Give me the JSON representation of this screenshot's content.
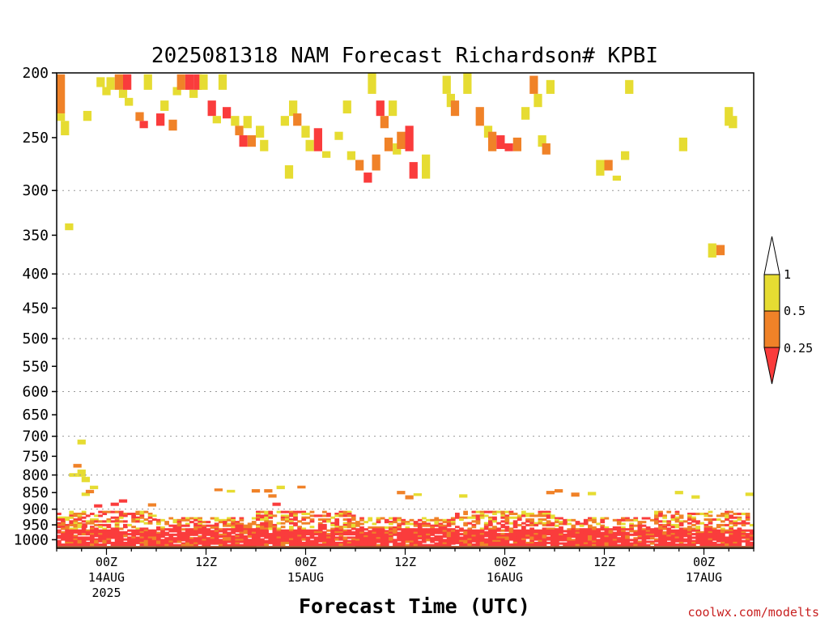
{
  "chart_data": {
    "type": "heatmap",
    "title": "2025081318 NAM Forecast Richardson# KPBI",
    "xlabel": "Forecast Time (UTC)",
    "ylabel": "",
    "credit": "coolwx.com/modelts",
    "x_unit": "hours from 2025-08-13 18Z",
    "xlim": [
      0,
      84
    ],
    "y_scale": "log",
    "ylim": [
      1030,
      200
    ],
    "y_ticks": [
      "200",
      "250",
      "300",
      "350",
      "400",
      "450",
      "500",
      "550",
      "600",
      "650",
      "700",
      "750",
      "800",
      "850",
      "900",
      "950",
      "1000"
    ],
    "y_gridlines": [
      300,
      400,
      500,
      600,
      700,
      800,
      900
    ],
    "x_ticks": [
      {
        "x": 6,
        "lines": [
          "00Z",
          "14AUG",
          "2025"
        ]
      },
      {
        "x": 18,
        "lines": [
          "12Z"
        ]
      },
      {
        "x": 30,
        "lines": [
          "00Z",
          "15AUG"
        ]
      },
      {
        "x": 42,
        "lines": [
          "12Z"
        ]
      },
      {
        "x": 54,
        "lines": [
          "00Z",
          "16AUG"
        ]
      },
      {
        "x": 66,
        "lines": [
          "12Z"
        ]
      },
      {
        "x": 78,
        "lines": [
          "00Z",
          "17AUG"
        ]
      }
    ],
    "colorbar": {
      "tick_labels": [
        "1",
        "0.5",
        "0.25"
      ],
      "levels": [
        {
          "range": "0.5-1",
          "color": "#e6dc32"
        },
        {
          "range": "0.25-0.5",
          "color": "#f08228"
        },
        {
          "range": "<0.25",
          "color": "#fa3c3c"
        }
      ]
    },
    "colors": {
      "yellow": "#e6dc32",
      "orange": "#f08228",
      "red": "#fa3c3c",
      "ground": "#a0522d"
    },
    "ground_pressure": 1016,
    "cells": [
      [
        0,
        201,
        230,
        "O"
      ],
      [
        0,
        230,
        236,
        "Y"
      ],
      [
        0.5,
        236,
        248,
        "Y"
      ],
      [
        1,
        336,
        344,
        "Y"
      ],
      [
        1.5,
        795,
        805,
        "Y"
      ],
      [
        2,
        770,
        780,
        "O"
      ],
      [
        2.5,
        708,
        720,
        "Y"
      ],
      [
        2.5,
        785,
        805,
        "Y"
      ],
      [
        3,
        805,
        820,
        "Y"
      ],
      [
        3,
        850,
        860,
        "Y"
      ],
      [
        2.7,
        945,
        960,
        "R"
      ],
      [
        3.2,
        228,
        236,
        "Y"
      ],
      [
        3.5,
        842,
        852,
        "O"
      ],
      [
        4,
        830,
        840,
        "Y"
      ],
      [
        4.5,
        885,
        895,
        "R"
      ],
      [
        4.8,
        203,
        210,
        "Y"
      ],
      [
        5.5,
        210,
        216,
        "Y"
      ],
      [
        6,
        203,
        212,
        "Y"
      ],
      [
        6.5,
        880,
        890,
        "R"
      ],
      [
        7,
        201,
        212,
        "O"
      ],
      [
        7.5,
        212,
        218,
        "Y"
      ],
      [
        7.5,
        870,
        880,
        "R"
      ],
      [
        8,
        201,
        212,
        "R"
      ],
      [
        8.2,
        218,
        224,
        "Y"
      ],
      [
        9.5,
        229,
        236,
        "O"
      ],
      [
        10,
        236,
        242,
        "R"
      ],
      [
        10.5,
        201,
        212,
        "Y"
      ],
      [
        11,
        882,
        892,
        "O"
      ],
      [
        12,
        230,
        240,
        "R"
      ],
      [
        12.5,
        220,
        228,
        "Y"
      ],
      [
        13.5,
        235,
        244,
        "O"
      ],
      [
        14,
        210,
        216,
        "Y"
      ],
      [
        14.5,
        201,
        212,
        "O"
      ],
      [
        15.5,
        201,
        212,
        "R"
      ],
      [
        16,
        212,
        218,
        "Y"
      ],
      [
        16.5,
        201,
        212,
        "R"
      ],
      [
        17.2,
        201,
        212,
        "Y"
      ],
      [
        18.2,
        220,
        232,
        "R"
      ],
      [
        18.8,
        232,
        238,
        "Y"
      ],
      [
        19,
        838,
        846,
        "O"
      ],
      [
        19.5,
        201,
        212,
        "Y"
      ],
      [
        20,
        225,
        234,
        "R"
      ],
      [
        20.5,
        842,
        850,
        "Y"
      ],
      [
        21,
        232,
        240,
        "Y"
      ],
      [
        21.5,
        240,
        248,
        "O"
      ],
      [
        22,
        248,
        258,
        "R"
      ],
      [
        22.5,
        232,
        242,
        "Y"
      ],
      [
        23,
        248,
        258,
        "O"
      ],
      [
        23.5,
        840,
        850,
        "O"
      ],
      [
        24,
        240,
        250,
        "Y"
      ],
      [
        24.5,
        252,
        262,
        "Y"
      ],
      [
        25,
        840,
        850,
        "O"
      ],
      [
        25.5,
        855,
        865,
        "O"
      ],
      [
        26,
        880,
        890,
        "R"
      ],
      [
        26.5,
        830,
        840,
        "Y"
      ],
      [
        27,
        232,
        240,
        "Y"
      ],
      [
        27.5,
        275,
        288,
        "Y"
      ],
      [
        28,
        220,
        232,
        "Y"
      ],
      [
        28.5,
        230,
        240,
        "O"
      ],
      [
        29,
        830,
        838,
        "O"
      ],
      [
        29.5,
        240,
        250,
        "Y"
      ],
      [
        30,
        252,
        262,
        "Y"
      ],
      [
        31,
        242,
        262,
        "R"
      ],
      [
        32,
        262,
        268,
        "Y"
      ],
      [
        33.5,
        245,
        252,
        "Y"
      ],
      [
        34.5,
        220,
        230,
        "Y"
      ],
      [
        35,
        262,
        270,
        "Y"
      ],
      [
        36,
        270,
        280,
        "O"
      ],
      [
        37,
        282,
        292,
        "R"
      ],
      [
        37.5,
        200,
        215,
        "Y"
      ],
      [
        38,
        265,
        280,
        "O"
      ],
      [
        38.5,
        220,
        232,
        "R"
      ],
      [
        39,
        232,
        242,
        "O"
      ],
      [
        39.5,
        250,
        262,
        "O"
      ],
      [
        40,
        220,
        232,
        "Y"
      ],
      [
        40.5,
        255,
        265,
        "Y"
      ],
      [
        41,
        245,
        260,
        "O"
      ],
      [
        42,
        240,
        262,
        "R"
      ],
      [
        42.5,
        272,
        288,
        "R"
      ],
      [
        41,
        845,
        855,
        "O"
      ],
      [
        42,
        858,
        870,
        "O"
      ],
      [
        43,
        852,
        860,
        "Y"
      ],
      [
        44,
        265,
        288,
        "Y"
      ],
      [
        46.5,
        202,
        215,
        "Y"
      ],
      [
        47,
        215,
        225,
        "Y"
      ],
      [
        47.5,
        220,
        232,
        "O"
      ],
      [
        48.5,
        855,
        865,
        "Y"
      ],
      [
        49,
        200,
        215,
        "Y"
      ],
      [
        50.5,
        225,
        240,
        "O"
      ],
      [
        51.5,
        240,
        250,
        "Y"
      ],
      [
        52,
        245,
        262,
        "O"
      ],
      [
        53,
        248,
        260,
        "R"
      ],
      [
        54,
        255,
        262,
        "R"
      ],
      [
        55,
        250,
        262,
        "O"
      ],
      [
        56,
        225,
        235,
        "Y"
      ],
      [
        57,
        202,
        215,
        "O"
      ],
      [
        57.5,
        215,
        225,
        "Y"
      ],
      [
        58,
        248,
        258,
        "Y"
      ],
      [
        58.5,
        255,
        265,
        "O"
      ],
      [
        59,
        205,
        215,
        "Y"
      ],
      [
        59,
        845,
        855,
        "O"
      ],
      [
        60,
        840,
        850,
        "O"
      ],
      [
        62,
        850,
        862,
        "O"
      ],
      [
        64,
        848,
        858,
        "Y"
      ],
      [
        65,
        270,
        285,
        "Y"
      ],
      [
        66,
        270,
        280,
        "O"
      ],
      [
        67,
        285,
        290,
        "Y"
      ],
      [
        68,
        262,
        270,
        "Y"
      ],
      [
        68.5,
        205,
        215,
        "Y"
      ],
      [
        74.5,
        845,
        855,
        "Y"
      ],
      [
        75,
        250,
        262,
        "Y"
      ],
      [
        76.5,
        858,
        868,
        "Y"
      ],
      [
        78.5,
        360,
        378,
        "Y"
      ],
      [
        79.5,
        362,
        375,
        "O"
      ],
      [
        80.5,
        225,
        240,
        "Y"
      ],
      [
        81,
        232,
        242,
        "Y"
      ],
      [
        83,
        850,
        860,
        "Y"
      ]
    ]
  }
}
